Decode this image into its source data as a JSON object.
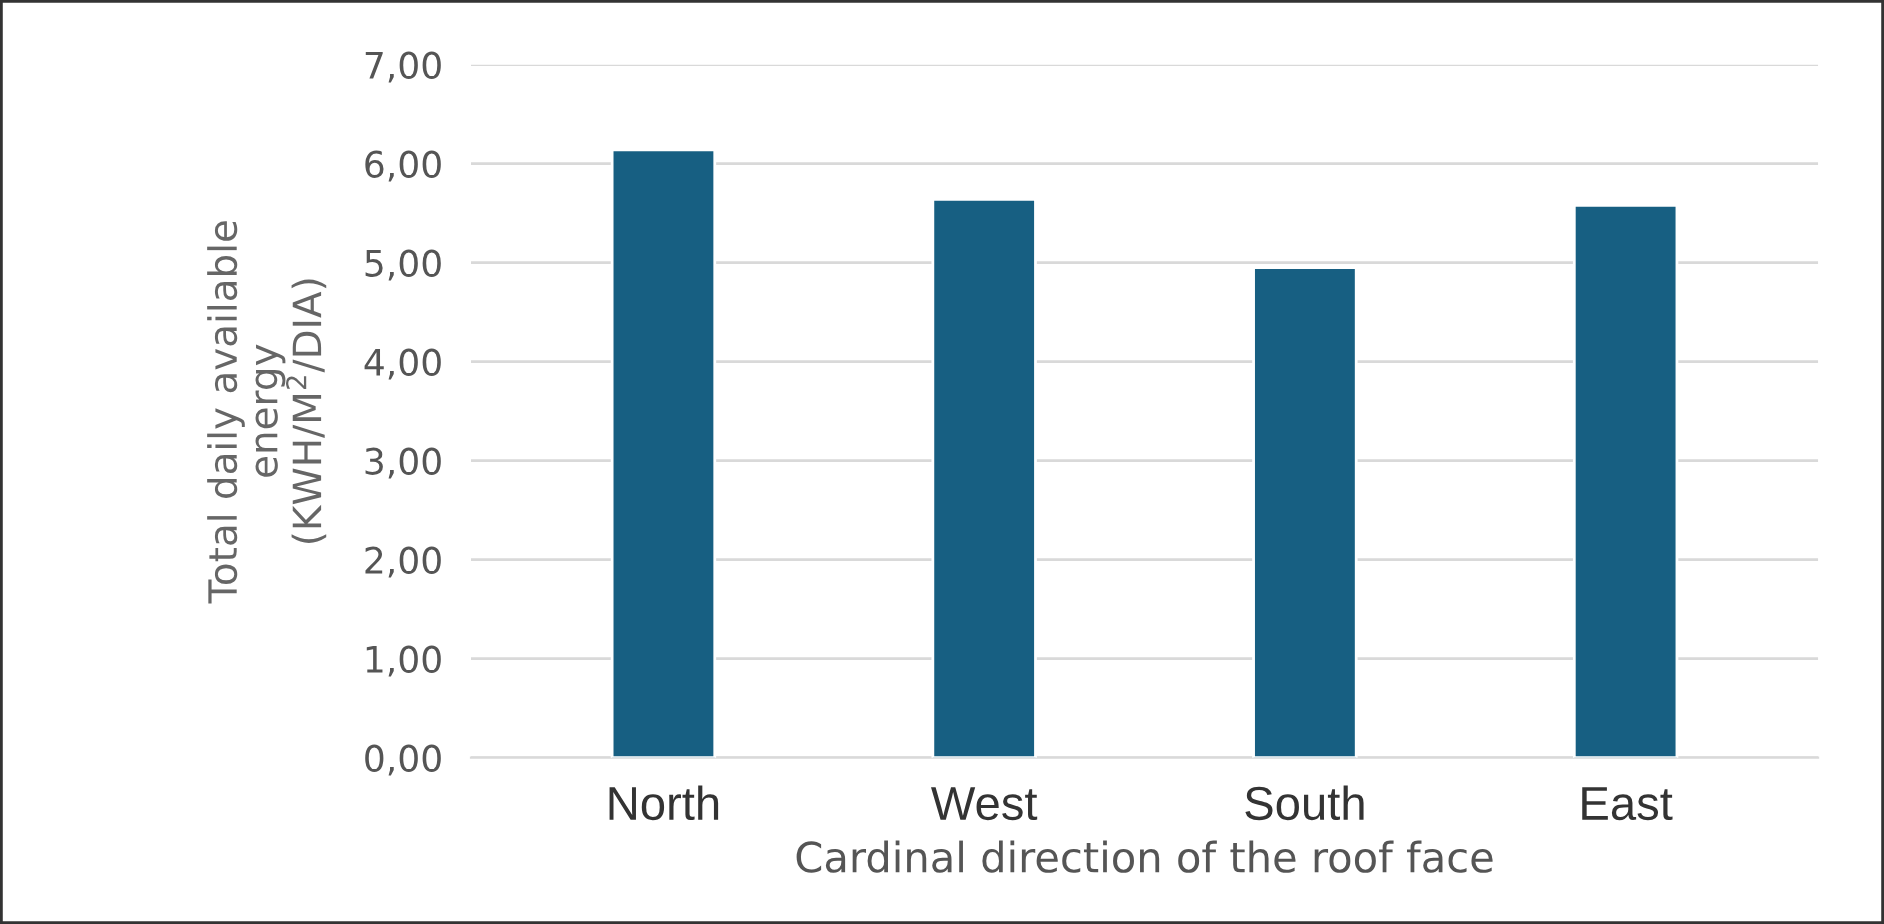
{
  "chart_data": {
    "type": "bar",
    "xlabel": "Cardinal direction of the roof face",
    "ylabel": "Total daily available\nenergy\n(KWH/M$^{2}$/DIA)",
    "categories": [
      "North",
      "West",
      "South",
      "East"
    ],
    "series": [
      {
        "color": "#175f82",
        "values": [
          6.14,
          5.64,
          4.95,
          5.58
        ]
      }
    ],
    "ylim": [
      0,
      7
    ],
    "yticks": [
      {
        "value": 0,
        "label": "0,00"
      },
      {
        "value": 1,
        "label": "1,00"
      },
      {
        "value": 2,
        "label": "2,00"
      },
      {
        "value": 3,
        "label": "3,00"
      },
      {
        "value": 4,
        "label": "4,00"
      },
      {
        "value": 5,
        "label": "5,00"
      },
      {
        "value": 6,
        "label": "6,00"
      },
      {
        "value": 7,
        "label": "7,00"
      }
    ],
    "grid": "y",
    "legend": false
  }
}
